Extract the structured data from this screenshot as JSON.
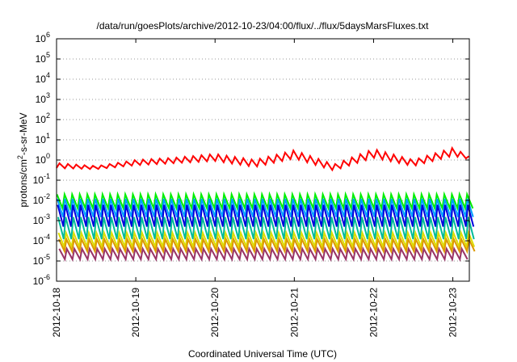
{
  "chart_data": {
    "type": "line",
    "title": "/data/run/goesPlots/archive/2012-10-23/04:00/flux/../flux/5daysMarsFluxes.txt",
    "xlabel": "Coordinated Universal Time (UTC)",
    "ylabel_parts": [
      "protons/cm",
      "2",
      "-s-sr-MeV"
    ],
    "y_scale": "log",
    "ylim_exponents": [
      -6,
      6
    ],
    "y_ticks": [
      {
        "base": "10",
        "exp": "6"
      },
      {
        "base": "10",
        "exp": "5"
      },
      {
        "base": "10",
        "exp": "4"
      },
      {
        "base": "10",
        "exp": "3"
      },
      {
        "base": "10",
        "exp": "2"
      },
      {
        "base": "10",
        "exp": "1"
      },
      {
        "base": "10",
        "exp": "0"
      },
      {
        "base": "10",
        "exp": "-1"
      },
      {
        "base": "10",
        "exp": "-2"
      },
      {
        "base": "10",
        "exp": "-3"
      },
      {
        "base": "10",
        "exp": "-4"
      },
      {
        "base": "10",
        "exp": "-5"
      },
      {
        "base": "10",
        "exp": "-6"
      }
    ],
    "x_range_days": [
      "2012-10-18",
      "2012-10-23T05:00"
    ],
    "x_ticks": [
      "2012-10-18",
      "2012-10-19",
      "2012-10-20",
      "2012-10-21",
      "2012-10-22",
      "2012-10-23"
    ],
    "grid": "dotted horizontal at decades",
    "sawtooth_period_hours": 2.3,
    "series": [
      {
        "color": "#ff0000",
        "style": "sawtooth-slow",
        "comment_values": "peak-envelope values at 0.5-day steps",
        "x": [
          "2012-10-18T00:00",
          "2012-10-18T12:00",
          "2012-10-19T00:00",
          "2012-10-19T12:00",
          "2012-10-20T00:00",
          "2012-10-20T12:00",
          "2012-10-21T00:00",
          "2012-10-21T12:00",
          "2012-10-22T00:00",
          "2012-10-22T12:00",
          "2012-10-23T00:00",
          "2012-10-23T05:00"
        ],
        "values": [
          0.7,
          0.5,
          1.0,
          1.3,
          2.0,
          1.0,
          3.0,
          0.6,
          3.5,
          1.0,
          4.0,
          1.5
        ],
        "valleys": [
          0.4,
          0.35,
          0.55,
          0.7,
          0.9,
          0.45,
          1.2,
          0.3,
          1.3,
          0.5,
          1.6,
          1.1
        ]
      },
      {
        "color": "#00ee00",
        "peak": 0.02,
        "trough": 0.004
      },
      {
        "color": "#00a0ff",
        "peak": 0.012,
        "trough": 0.0015
      },
      {
        "color": "#0000dd",
        "peak": 0.006,
        "trough": 0.0005
      },
      {
        "color": "#00bb99",
        "peak": 0.0015,
        "trough": 0.00012
      },
      {
        "color": "#dddd00",
        "peak": 0.00025,
        "trough": 5e-05
      },
      {
        "color": "#dd9900",
        "peak": 0.00012,
        "trough": 3e-05
      },
      {
        "color": "#993366",
        "peak": 4e-05,
        "trough": 1.2e-05
      }
    ]
  }
}
